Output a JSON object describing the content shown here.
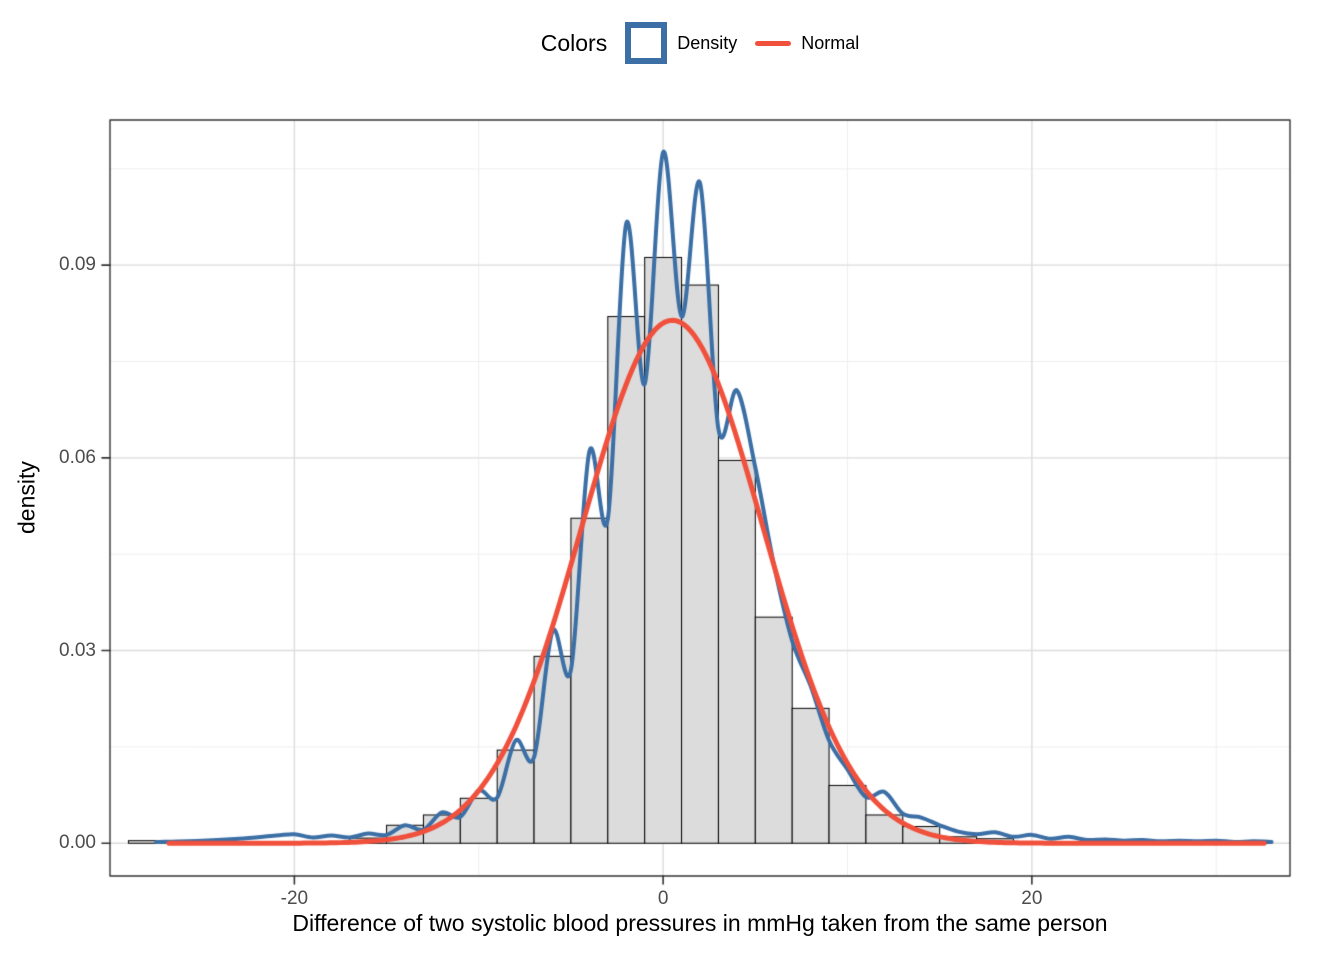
{
  "legend": {
    "title": "Colors",
    "items": [
      {
        "label": "Density",
        "color": "#3B6FA5",
        "key": "open-square-icon"
      },
      {
        "label": "Normal",
        "color": "#F0503C",
        "key": "line-icon"
      }
    ]
  },
  "chart_data": {
    "type": "histogram",
    "title": "",
    "xlabel": "Difference of two systolic blood pressures in mmHg taken from the same person",
    "ylabel": "density",
    "xlim": [
      -30.0,
      34.0
    ],
    "ylim": [
      -0.0051,
      0.1126
    ],
    "grid": {
      "major_color": "#DCDCDC",
      "minor_color": "#EEEEEE"
    },
    "panel_border": "#333333",
    "x_major_ticks": [
      {
        "value": -20,
        "label": "-20"
      },
      {
        "value": 0,
        "label": "0"
      },
      {
        "value": 20,
        "label": "20"
      }
    ],
    "x_minor_ticks": [
      -10,
      10,
      30
    ],
    "y_major_ticks": [
      {
        "value": 0.0,
        "label": "0.00"
      },
      {
        "value": 0.03,
        "label": "0.03"
      },
      {
        "value": 0.06,
        "label": "0.06"
      },
      {
        "value": 0.09,
        "label": "0.09"
      }
    ],
    "y_minor_ticks": [
      0.015,
      0.045,
      0.075,
      0.105
    ],
    "histogram": {
      "bin_width": 2,
      "fill": "#DCDCDC",
      "stroke": "#000000",
      "bars": [
        {
          "center": -28,
          "height": 0.0004
        },
        {
          "center": -16,
          "height": 0.0008
        },
        {
          "center": -14,
          "height": 0.0028
        },
        {
          "center": -12,
          "height": 0.0044
        },
        {
          "center": -10,
          "height": 0.007
        },
        {
          "center": -8,
          "height": 0.0145
        },
        {
          "center": -6,
          "height": 0.0291
        },
        {
          "center": -4,
          "height": 0.0506
        },
        {
          "center": -2,
          "height": 0.082
        },
        {
          "center": 0,
          "height": 0.0912
        },
        {
          "center": 2,
          "height": 0.0869
        },
        {
          "center": 4,
          "height": 0.0596
        },
        {
          "center": 6,
          "height": 0.0352
        },
        {
          "center": 8,
          "height": 0.021
        },
        {
          "center": 10,
          "height": 0.009
        },
        {
          "center": 12,
          "height": 0.0044
        },
        {
          "center": 14,
          "height": 0.0026
        },
        {
          "center": 16,
          "height": 0.001
        },
        {
          "center": 18,
          "height": 0.0007
        },
        {
          "center": 32,
          "height": 0.0004
        }
      ]
    },
    "density_curve": {
      "color": "#3B6FA5",
      "width": 4,
      "points": [
        [
          -27.5,
          0.0002
        ],
        [
          -25,
          0.0004
        ],
        [
          -23,
          0.0007
        ],
        [
          -21,
          0.0012
        ],
        [
          -20,
          0.0014
        ],
        [
          -19,
          0.0009
        ],
        [
          -18,
          0.0012
        ],
        [
          -17,
          0.0009
        ],
        [
          -16,
          0.0015
        ],
        [
          -15,
          0.0013
        ],
        [
          -14,
          0.0028
        ],
        [
          -13,
          0.0021
        ],
        [
          -12,
          0.0048
        ],
        [
          -11,
          0.0041
        ],
        [
          -10,
          0.0082
        ],
        [
          -9,
          0.0071
        ],
        [
          -8,
          0.016
        ],
        [
          -7,
          0.0134
        ],
        [
          -6,
          0.033
        ],
        [
          -5,
          0.027
        ],
        [
          -4,
          0.061
        ],
        [
          -3,
          0.0505
        ],
        [
          -2,
          0.0965
        ],
        [
          -1,
          0.0715
        ],
        [
          0,
          0.1076
        ],
        [
          1,
          0.082
        ],
        [
          2,
          0.1028
        ],
        [
          3,
          0.0645
        ],
        [
          4,
          0.0705
        ],
        [
          5,
          0.0585
        ],
        [
          6,
          0.0435
        ],
        [
          7,
          0.0315
        ],
        [
          8,
          0.0245
        ],
        [
          9,
          0.016
        ],
        [
          10,
          0.0115
        ],
        [
          11,
          0.0072
        ],
        [
          12,
          0.008
        ],
        [
          13,
          0.0046
        ],
        [
          14,
          0.004
        ],
        [
          15,
          0.0028
        ],
        [
          16,
          0.0018
        ],
        [
          17,
          0.0014
        ],
        [
          18,
          0.0017
        ],
        [
          19,
          0.001
        ],
        [
          20,
          0.0013
        ],
        [
          21,
          0.0007
        ],
        [
          22,
          0.001
        ],
        [
          23,
          0.0005
        ],
        [
          24,
          0.0006
        ],
        [
          25,
          0.0004
        ],
        [
          26,
          0.0005
        ],
        [
          27,
          0.0003
        ],
        [
          28,
          0.0004
        ],
        [
          29,
          0.0003
        ],
        [
          30,
          0.0004
        ],
        [
          31,
          0.0002
        ],
        [
          32,
          0.0003
        ],
        [
          33,
          0.0002
        ]
      ]
    },
    "normal_curve": {
      "color": "#F0503C",
      "width": 5,
      "mean": 0.5,
      "sd": 4.9,
      "range": [
        -26.8,
        32.6
      ]
    }
  }
}
